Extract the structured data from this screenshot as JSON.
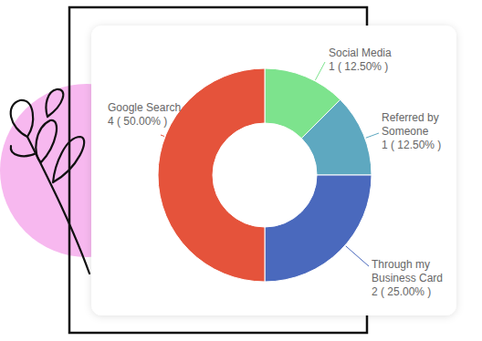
{
  "chart_data": {
    "type": "donut",
    "categories": [
      "Social Media",
      "Referred by Someone",
      "Through my Business Card",
      "Google Search"
    ],
    "values": [
      1,
      1,
      2,
      4
    ],
    "value_labels": [
      "1 ( 12.50% )",
      "1 ( 12.50% )",
      "2 ( 25.00% )",
      "4 ( 50.00% )"
    ],
    "colors": [
      "#7de38d",
      "#5ea8c0",
      "#4a69bd",
      "#e5533b"
    ],
    "data_labels": true
  }
}
